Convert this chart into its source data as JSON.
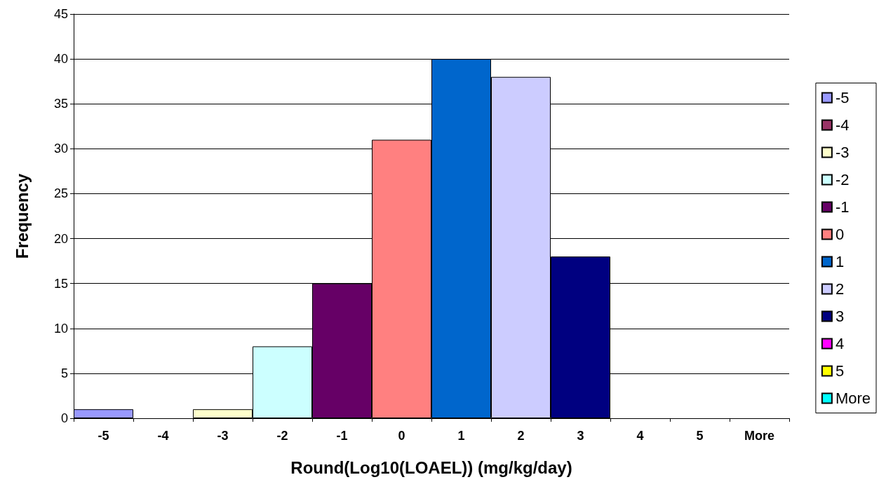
{
  "chart_data": {
    "type": "bar",
    "xlabel": "Round(Log10(LOAEL)) (mg/kg/day)",
    "ylabel": "Frequency",
    "categories": [
      "-5",
      "-4",
      "-3",
      "-2",
      "-1",
      "0",
      "1",
      "2",
      "3",
      "4",
      "5",
      "More"
    ],
    "series": [
      {
        "name": "-5",
        "color": "#9999ff",
        "values": [
          1,
          null,
          null,
          null,
          null,
          null,
          null,
          null,
          null,
          null,
          null,
          null
        ]
      },
      {
        "name": "-4",
        "color": "#993366",
        "values": [
          null,
          0,
          null,
          null,
          null,
          null,
          null,
          null,
          null,
          null,
          null,
          null
        ]
      },
      {
        "name": "-3",
        "color": "#ffffcc",
        "values": [
          null,
          null,
          1,
          null,
          null,
          null,
          null,
          null,
          null,
          null,
          null,
          null
        ]
      },
      {
        "name": "-2",
        "color": "#ccffff",
        "values": [
          null,
          null,
          null,
          8,
          null,
          null,
          null,
          null,
          null,
          null,
          null,
          null
        ]
      },
      {
        "name": "-1",
        "color": "#660066",
        "values": [
          null,
          null,
          null,
          null,
          15,
          null,
          null,
          null,
          null,
          null,
          null,
          null
        ]
      },
      {
        "name": "0",
        "color": "#ff8080",
        "values": [
          null,
          null,
          null,
          null,
          null,
          31,
          null,
          null,
          null,
          null,
          null,
          null
        ]
      },
      {
        "name": "1",
        "color": "#0066cc",
        "values": [
          null,
          null,
          null,
          null,
          null,
          null,
          40,
          null,
          null,
          null,
          null,
          null
        ]
      },
      {
        "name": "2",
        "color": "#ccccff",
        "values": [
          null,
          null,
          null,
          null,
          null,
          null,
          null,
          38,
          null,
          null,
          null,
          null
        ]
      },
      {
        "name": "3",
        "color": "#000080",
        "values": [
          null,
          null,
          null,
          null,
          null,
          null,
          null,
          null,
          18,
          null,
          null,
          null
        ]
      },
      {
        "name": "4",
        "color": "#ff00ff",
        "values": [
          null,
          null,
          null,
          null,
          null,
          null,
          null,
          null,
          null,
          0,
          null,
          null
        ]
      },
      {
        "name": "5",
        "color": "#ffff00",
        "values": [
          null,
          null,
          null,
          null,
          null,
          null,
          null,
          null,
          null,
          null,
          0,
          null
        ]
      },
      {
        "name": "More",
        "color": "#00ffff",
        "values": [
          null,
          null,
          null,
          null,
          null,
          null,
          null,
          null,
          null,
          null,
          null,
          0
        ]
      }
    ],
    "ylim": [
      0,
      45
    ],
    "yticks": [
      0,
      5,
      10,
      15,
      20,
      25,
      30,
      35,
      40,
      45
    ],
    "grid": "y",
    "legend": "right"
  }
}
